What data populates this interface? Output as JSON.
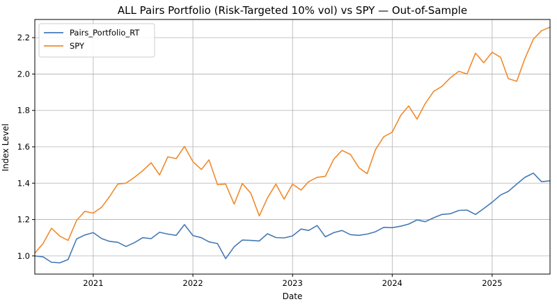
{
  "chart_data": {
    "type": "line",
    "title": "ALL Pairs Portfolio (Risk-Targeted 10% vol) vs SPY — Out-of-Sample",
    "xlabel": "Date",
    "ylabel": "Index Level",
    "xlim": [
      "2020-06-01",
      "2025-08-01"
    ],
    "ylim": [
      0.9,
      2.3
    ],
    "x_ticks": [
      {
        "date": "2021-01-01",
        "label": "2021"
      },
      {
        "date": "2022-01-01",
        "label": "2022"
      },
      {
        "date": "2023-01-01",
        "label": "2023"
      },
      {
        "date": "2024-01-01",
        "label": "2024"
      },
      {
        "date": "2025-01-01",
        "label": "2025"
      }
    ],
    "y_ticks": [
      {
        "value": 1.0,
        "label": "1.0"
      },
      {
        "value": 1.2,
        "label": "1.2"
      },
      {
        "value": 1.4,
        "label": "1.4"
      },
      {
        "value": 1.6,
        "label": "1.6"
      },
      {
        "value": 1.8,
        "label": "1.8"
      },
      {
        "value": 2.0,
        "label": "2.0"
      },
      {
        "value": 2.2,
        "label": "2.2"
      }
    ],
    "grid": true,
    "legend_position": "top-left",
    "x": [
      "2020-06-01",
      "2020-07-01",
      "2020-08-01",
      "2020-09-01",
      "2020-10-01",
      "2020-11-01",
      "2020-12-01",
      "2021-01-01",
      "2021-02-01",
      "2021-03-01",
      "2021-04-01",
      "2021-05-01",
      "2021-06-01",
      "2021-07-01",
      "2021-08-01",
      "2021-09-01",
      "2021-10-01",
      "2021-11-01",
      "2021-12-01",
      "2022-01-01",
      "2022-02-01",
      "2022-03-01",
      "2022-04-01",
      "2022-05-01",
      "2022-06-01",
      "2022-07-01",
      "2022-08-01",
      "2022-09-01",
      "2022-10-01",
      "2022-11-01",
      "2022-12-01",
      "2023-01-01",
      "2023-02-01",
      "2023-03-01",
      "2023-04-01",
      "2023-05-01",
      "2023-06-01",
      "2023-07-01",
      "2023-08-01",
      "2023-09-01",
      "2023-10-01",
      "2023-11-01",
      "2023-12-01",
      "2024-01-01",
      "2024-02-01",
      "2024-03-01",
      "2024-04-01",
      "2024-05-01",
      "2024-06-01",
      "2024-07-01",
      "2024-08-01",
      "2024-09-01",
      "2024-10-01",
      "2024-11-01",
      "2024-12-01",
      "2025-01-01",
      "2025-02-01",
      "2025-03-01",
      "2025-04-01",
      "2025-05-01",
      "2025-06-01",
      "2025-07-01",
      "2025-08-01"
    ],
    "series": [
      {
        "name": "Pairs_Portfolio_RT",
        "color": "#4479b4",
        "values": [
          1.0,
          0.995,
          0.965,
          0.962,
          0.98,
          1.093,
          1.115,
          1.128,
          1.095,
          1.08,
          1.075,
          1.052,
          1.073,
          1.1,
          1.095,
          1.13,
          1.12,
          1.113,
          1.172,
          1.112,
          1.1,
          1.077,
          1.068,
          0.985,
          1.05,
          1.087,
          1.085,
          1.082,
          1.122,
          1.101,
          1.099,
          1.11,
          1.148,
          1.14,
          1.167,
          1.105,
          1.128,
          1.14,
          1.117,
          1.113,
          1.12,
          1.133,
          1.157,
          1.155,
          1.163,
          1.175,
          1.198,
          1.188,
          1.21,
          1.228,
          1.232,
          1.25,
          1.252,
          1.228,
          1.26,
          1.295,
          1.335,
          1.355,
          1.395,
          1.432,
          1.455,
          1.408,
          1.413
        ]
      },
      {
        "name": "SPY",
        "color": "#f08a2c",
        "values": [
          1.015,
          1.068,
          1.152,
          1.108,
          1.085,
          1.195,
          1.245,
          1.235,
          1.268,
          1.325,
          1.395,
          1.4,
          1.432,
          1.468,
          1.512,
          1.445,
          1.545,
          1.535,
          1.602,
          1.518,
          1.475,
          1.528,
          1.392,
          1.395,
          1.285,
          1.398,
          1.345,
          1.22,
          1.318,
          1.395,
          1.312,
          1.395,
          1.362,
          1.408,
          1.432,
          1.438,
          1.532,
          1.58,
          1.558,
          1.485,
          1.452,
          1.585,
          1.655,
          1.68,
          1.772,
          1.825,
          1.752,
          1.838,
          1.905,
          1.932,
          1.98,
          2.015,
          2.0,
          2.115,
          2.062,
          2.12,
          2.092,
          1.975,
          1.96,
          2.085,
          2.192,
          2.238,
          2.258
        ]
      }
    ]
  }
}
